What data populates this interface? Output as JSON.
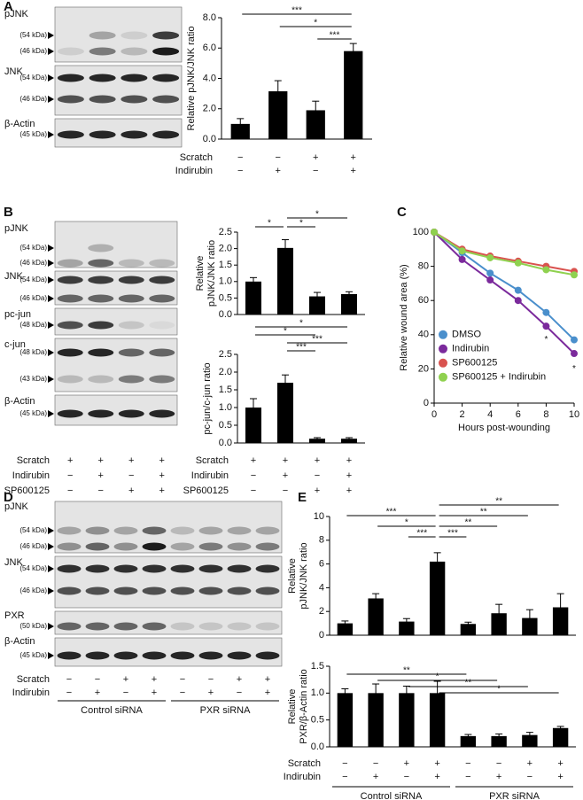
{
  "panel_labels": [
    "A",
    "B",
    "C",
    "D",
    "E"
  ],
  "blots": [
    {
      "rows": [
        {
          "label": "pJNK",
          "markers": [
            "(54 kDa)",
            "(46 kDa)"
          ]
        },
        {
          "label": "JNK",
          "markers": [
            "(54 kDa)",
            "(46 kDa)"
          ]
        },
        {
          "label": "β-Actin",
          "markers": [
            "(45 kDa)"
          ]
        }
      ]
    },
    {
      "rows": [
        {
          "label": "pJNK",
          "markers": [
            "(54 kDa)",
            "(46 kDa)"
          ]
        },
        {
          "label": "JNK",
          "markers": [
            "(54 kDa)",
            "(46 kDa)"
          ]
        },
        {
          "label": "pc-jun",
          "markers": [
            "(48 kDa)"
          ]
        },
        {
          "label": "c-jun",
          "markers": [
            "(48 kDa)",
            "(43 kDa)"
          ]
        },
        {
          "label": "β-Actin",
          "markers": [
            "(45 kDa)"
          ]
        }
      ],
      "conditions": [
        {
          "name": "Scratch",
          "values": [
            "+",
            "+",
            "+",
            "+"
          ]
        },
        {
          "name": "Indirubin",
          "values": [
            "−",
            "+",
            "−",
            "+"
          ]
        },
        {
          "name": "SP600125",
          "values": [
            "−",
            "−",
            "+",
            "+"
          ]
        }
      ]
    },
    {
      "rows": [
        {
          "label": "pJNK",
          "markers": [
            "(54 kDa)",
            "(46 kDa)"
          ]
        },
        {
          "label": "JNK",
          "markers": [
            "(54 kDa)",
            "(46 kDa)"
          ]
        },
        {
          "label": "PXR",
          "markers": [
            "(50 kDa)"
          ]
        },
        {
          "label": "β-Actin",
          "markers": [
            "(45 kDa)"
          ]
        }
      ],
      "conditions": [
        {
          "name": "Scratch",
          "values": [
            "−",
            "−",
            "+",
            "+",
            "−",
            "−",
            "+",
            "+"
          ]
        },
        {
          "name": "Indirubin",
          "values": [
            "−",
            "+",
            "−",
            "+",
            "−",
            "+",
            "−",
            "+"
          ]
        }
      ],
      "groups": [
        "Control siRNA",
        "PXR siRNA"
      ]
    }
  ],
  "chart_data": [
    {
      "type": "bar",
      "ylabel": "Relative pJNK/JNK ratio",
      "color": "#000000",
      "values": [
        1.0,
        3.15,
        1.9,
        5.8
      ],
      "errors": [
        0.35,
        0.7,
        0.6,
        0.5
      ],
      "ylim": [
        0,
        8
      ],
      "yticks": [
        {
          "value": 0,
          "label": "0.0"
        },
        {
          "value": 2,
          "label": "2.0"
        },
        {
          "value": 4,
          "label": "4.0"
        },
        {
          "value": 6,
          "label": "6.0"
        },
        {
          "value": 8,
          "label": "8.0"
        }
      ],
      "annotations": [
        {
          "text": "***",
          "from": 2,
          "to": 3
        },
        {
          "text": "*",
          "from": 1,
          "to": 3
        },
        {
          "text": "***",
          "from": 0,
          "to": 3
        }
      ],
      "conditions": [
        {
          "name": "Scratch",
          "values": [
            "−",
            "−",
            "+",
            "+"
          ]
        },
        {
          "name": "Indirubin",
          "values": [
            "−",
            "+",
            "−",
            "+"
          ]
        }
      ]
    },
    {
      "type": "bar",
      "ylabel": [
        "Relative",
        "pJNK/JNK ratio"
      ],
      "color": "#000000",
      "values": [
        1.0,
        2.02,
        0.55,
        0.62
      ],
      "errors": [
        0.12,
        0.25,
        0.12,
        0.07
      ],
      "ylim": [
        0,
        2.5
      ],
      "yticks": [
        {
          "value": 0,
          "label": "0.0"
        },
        {
          "value": 0.5,
          "label": "0.5"
        },
        {
          "value": 1,
          "label": "1.0"
        },
        {
          "value": 1.5,
          "label": "1.5"
        },
        {
          "value": 2,
          "label": "2.0"
        },
        {
          "value": 2.5,
          "label": "2.5"
        }
      ],
      "annotations": [
        {
          "text": "*",
          "from": 0,
          "to": 1
        },
        {
          "text": "*",
          "from": 1,
          "to": 2
        },
        {
          "text": "*",
          "from": 1,
          "to": 3
        }
      ]
    },
    {
      "type": "bar",
      "ylabel": "pc-jun/c-jun ratio",
      "color": "#000000",
      "values": [
        1.0,
        1.7,
        0.12,
        0.12
      ],
      "errors": [
        0.25,
        0.22,
        0.03,
        0.03
      ],
      "ylim": [
        0,
        2.5
      ],
      "yticks": [
        {
          "value": 0,
          "label": "0.0"
        },
        {
          "value": 0.5,
          "label": "0.5"
        },
        {
          "value": 1,
          "label": "1.0"
        },
        {
          "value": 1.5,
          "label": "1.5"
        },
        {
          "value": 2,
          "label": "2.0"
        },
        {
          "value": 2.5,
          "label": "2.5"
        }
      ],
      "annotations": [
        {
          "text": "***",
          "from": 1,
          "to": 2
        },
        {
          "text": "***",
          "from": 1,
          "to": 3
        },
        {
          "text": "*",
          "from": 0,
          "to": 2
        },
        {
          "text": "*",
          "from": 0,
          "to": 3
        }
      ],
      "conditions": [
        {
          "name": "Scratch",
          "values": [
            "+",
            "+",
            "+",
            "+"
          ]
        },
        {
          "name": "Indirubin",
          "values": [
            "−",
            "+",
            "−",
            "+"
          ]
        },
        {
          "name": "SP600125",
          "values": [
            "−",
            "−",
            "+",
            "+"
          ]
        }
      ]
    },
    {
      "type": "line",
      "ylabel": "Relative wound area (%)",
      "xlabel": "Hours post-wounding",
      "x": [
        0,
        2,
        4,
        6,
        8,
        10
      ],
      "xlim": [
        0,
        10
      ],
      "xticks": [
        0,
        2,
        4,
        6,
        8,
        10
      ],
      "ylim": [
        0,
        100
      ],
      "yticks": [
        0,
        20,
        40,
        60,
        80,
        100
      ],
      "legend": "center left",
      "series": [
        {
          "name": "DMSO",
          "color": "#4a8fcc",
          "values": [
            100,
            88,
            76,
            66,
            53,
            37
          ]
        },
        {
          "name": "Indirubin",
          "color": "#7b2a9c",
          "values": [
            100,
            84,
            72,
            60,
            45,
            29
          ]
        },
        {
          "name": "SP600125",
          "color": "#d9534f",
          "values": [
            100,
            90,
            86,
            83,
            80,
            77
          ]
        },
        {
          "name": "SP600125 + Indirubin",
          "color": "#8fd14f",
          "values": [
            100,
            89,
            85,
            82,
            78,
            75
          ]
        }
      ],
      "annotations": [
        {
          "text": "*",
          "x": 8,
          "y": 37,
          "color": "#7b2a9c"
        },
        {
          "text": "*",
          "x": 10,
          "y": 20,
          "color": "#7b2a9c"
        }
      ]
    },
    {
      "type": "bar",
      "ylabel": [
        "Relative",
        "pJNK/JNK ratio"
      ],
      "color": "#000000",
      "values": [
        1.0,
        3.1,
        1.15,
        6.2,
        0.95,
        1.85,
        1.45,
        2.35
      ],
      "errors": [
        0.2,
        0.4,
        0.25,
        0.75,
        0.15,
        0.75,
        0.7,
        1.15
      ],
      "ylim": [
        0,
        10
      ],
      "yticks": [
        0,
        2,
        4,
        6,
        8,
        10
      ],
      "annotations": [
        {
          "text": "***",
          "from": 2,
          "to": 3
        },
        {
          "text": "***",
          "from": 3,
          "to": 4
        },
        {
          "text": "*",
          "from": 1,
          "to": 3
        },
        {
          "text": "**",
          "from": 3,
          "to": 5
        },
        {
          "text": "***",
          "from": 0,
          "to": 3
        },
        {
          "text": "**",
          "from": 3,
          "to": 6
        },
        {
          "text": "**",
          "from": 3,
          "to": 7
        }
      ]
    },
    {
      "type": "bar",
      "ylabel": [
        "Relative",
        "PXR/β-Actin ratio"
      ],
      "color": "#000000",
      "values": [
        1.0,
        1.0,
        1.0,
        1.0,
        0.2,
        0.2,
        0.22,
        0.35
      ],
      "errors": [
        0.08,
        0.17,
        0.13,
        0.22,
        0.03,
        0.04,
        0.05,
        0.03
      ],
      "ylim": [
        0,
        1.5
      ],
      "yticks": [
        {
          "value": 0,
          "label": "0.0"
        },
        {
          "value": 0.5,
          "label": "0.5"
        },
        {
          "value": 1,
          "label": "1.0"
        },
        {
          "value": 1.5,
          "label": "1.5"
        }
      ],
      "annotations": [
        {
          "text": "*",
          "from": 3,
          "to": 7
        },
        {
          "text": "**",
          "from": 2,
          "to": 6
        },
        {
          "text": "*",
          "from": 1,
          "to": 5
        },
        {
          "text": "**",
          "from": 0,
          "to": 4
        }
      ],
      "conditions": [
        {
          "name": "Scratch",
          "values": [
            "−",
            "−",
            "+",
            "+",
            "−",
            "−",
            "+",
            "+"
          ]
        },
        {
          "name": "Indirubin",
          "values": [
            "−",
            "+",
            "−",
            "+",
            "−",
            "+",
            "−",
            "+"
          ]
        }
      ],
      "groups": [
        "Control siRNA",
        "PXR siRNA"
      ]
    }
  ]
}
